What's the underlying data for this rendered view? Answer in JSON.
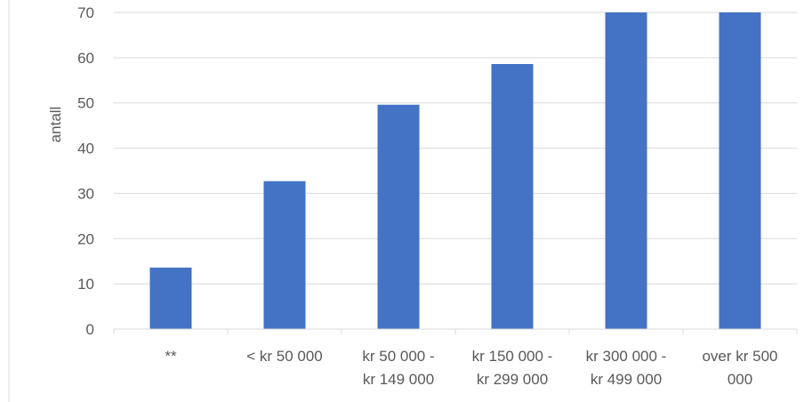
{
  "chart_data": {
    "type": "bar",
    "title": "",
    "xlabel": "",
    "ylabel": "antall",
    "categories": [
      [
        "**"
      ],
      [
        "< kr 50 000"
      ],
      [
        "kr 50 000 -",
        "kr 149 000"
      ],
      [
        "kr 150 000 -",
        "kr 299 000"
      ],
      [
        "kr 300 000 -",
        "kr 499 000"
      ],
      [
        "over kr 500",
        "000"
      ]
    ],
    "values": [
      13.6,
      32.7,
      49.6,
      58.6,
      70,
      70
    ],
    "yticks": [
      "0",
      "10",
      "20",
      "30",
      "40",
      "50",
      "60",
      "70"
    ],
    "ylim": [
      0,
      70
    ],
    "grid": true,
    "bar_color": "#4472c4"
  }
}
